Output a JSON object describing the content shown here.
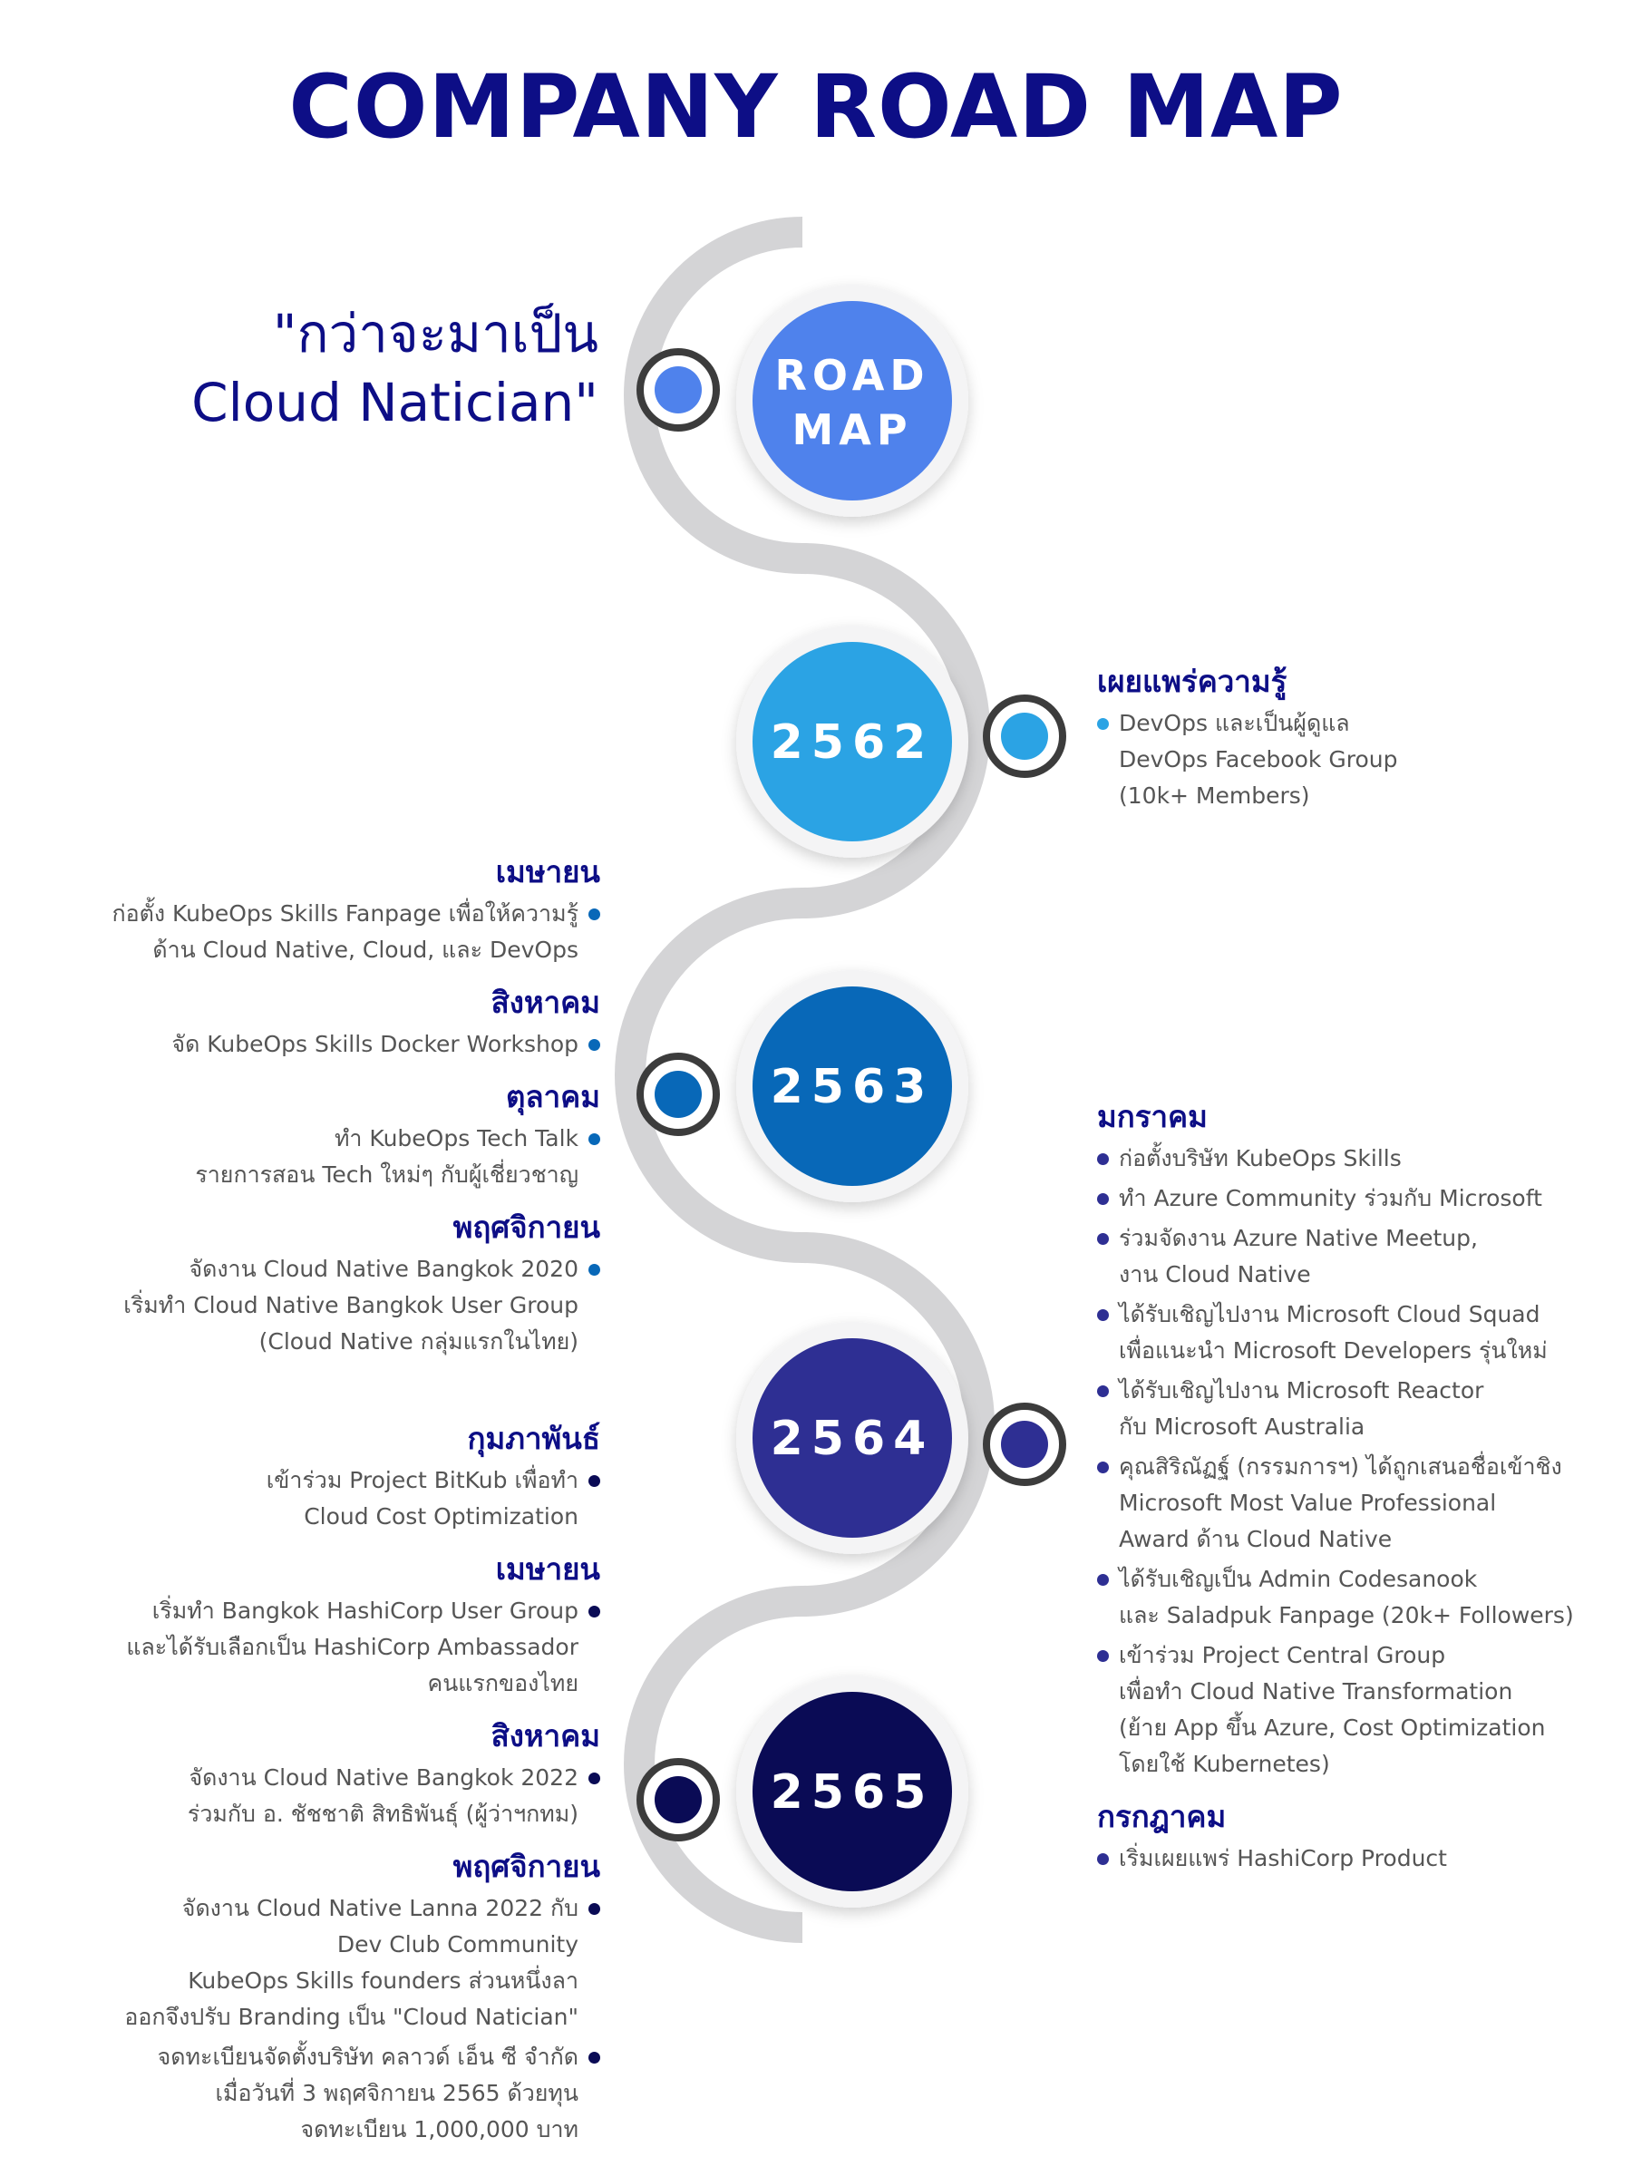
{
  "title": "COMPANY ROAD MAP",
  "tagline": {
    "line1": "\"กว่าจะมาเป็น",
    "line2": "Cloud Natician\""
  },
  "colors": {
    "title": "#0d0e86",
    "track": "#d4d4d6",
    "roadmap": "#4f82ec",
    "y2562": "#2ba3e4",
    "y2563": "#0868b8",
    "y2564": "#2e2f93",
    "y2565": "#0a0b55"
  },
  "milestones": [
    {
      "label_line1": "ROAD",
      "label_line2": "MAP"
    },
    {
      "label_line1": "2562",
      "label_line2": ""
    },
    {
      "label_line1": "2563",
      "label_line2": ""
    },
    {
      "label_line1": "2564",
      "label_line2": ""
    },
    {
      "label_line1": "2565",
      "label_line2": ""
    }
  ],
  "events": {
    "y2562_right": [
      {
        "month": "เผยแพร่ความรู้",
        "items": [
          {
            "lines": [
              "DevOps และเป็นผู้ดูแล",
              "DevOps Facebook Group",
              "(10k+ Members)"
            ]
          }
        ]
      }
    ],
    "y2563_left": [
      {
        "month": "เมษายน",
        "items": [
          {
            "lines": [
              "ก่อตั้ง KubeOps Skills Fanpage เพื่อให้ความรู้",
              "ด้าน Cloud Native, Cloud, และ DevOps"
            ]
          }
        ]
      },
      {
        "month": "สิงหาคม",
        "items": [
          {
            "lines": [
              "จัด KubeOps Skills Docker Workshop"
            ]
          }
        ]
      },
      {
        "month": "ตุลาคม",
        "items": [
          {
            "lines": [
              "ทำ KubeOps Tech Talk",
              "รายการสอน Tech ใหม่ๆ กับผู้เชี่ยวชาญ"
            ]
          }
        ]
      },
      {
        "month": "พฤศจิกายน",
        "items": [
          {
            "lines": [
              "จัดงาน Cloud Native Bangkok 2020",
              "เริ่มทำ Cloud Native Bangkok User Group",
              "(Cloud Native กลุ่มแรกในไทย)"
            ]
          }
        ]
      }
    ],
    "y2564_right": [
      {
        "month": "มกราคม",
        "items": [
          {
            "lines": [
              "ก่อตั้งบริษัท KubeOps Skills"
            ]
          },
          {
            "lines": [
              "ทำ Azure Community ร่วมกับ Microsoft"
            ]
          },
          {
            "lines": [
              "ร่วมจัดงาน Azure Native Meetup,",
              "งาน Cloud Native"
            ]
          },
          {
            "lines": [
              "ได้รับเชิญไปงาน Microsoft Cloud Squad",
              "เพื่อแนะนำ Microsoft Developers รุ่นใหม่"
            ]
          },
          {
            "lines": [
              "ได้รับเชิญไปงาน Microsoft Reactor",
              "กับ Microsoft Australia"
            ]
          },
          {
            "lines": [
              "คุณสิริณัฏฐ์ (กรรมการฯ) ได้ถูกเสนอชื่อเข้าชิง",
              "Microsoft Most Value Professional",
              "Award ด้าน Cloud Native"
            ]
          },
          {
            "lines": [
              "ได้รับเชิญเป็น Admin Codesanook",
              "และ Saladpuk Fanpage (20k+ Followers)"
            ]
          },
          {
            "lines": [
              "เข้าร่วม Project Central Group",
              "เพื่อทำ Cloud Native Transformation",
              "(ย้าย App ขึ้น Azure, Cost Optimization",
              "โดยใช้ Kubernetes)"
            ]
          }
        ]
      },
      {
        "month": "กรกฎาคม",
        "items": [
          {
            "lines": [
              "เริ่มเผยแพร่ HashiCorp Product"
            ]
          }
        ]
      }
    ],
    "y2565_left": [
      {
        "month": "กุมภาพันธ์",
        "items": [
          {
            "lines": [
              "เข้าร่วม Project BitKub เพื่อทำ",
              "Cloud Cost Optimization"
            ]
          }
        ]
      },
      {
        "month": "เมษายน",
        "items": [
          {
            "lines": [
              "เริ่มทำ Bangkok HashiCorp User Group",
              "และได้รับเลือกเป็น HashiCorp Ambassador",
              "คนแรกของไทย"
            ]
          }
        ]
      },
      {
        "month": "สิงหาคม",
        "items": [
          {
            "lines": [
              "จัดงาน Cloud Native Bangkok 2022",
              "ร่วมกับ อ. ชัชชาติ สิทธิพันธุ์ (ผู้ว่าฯกทม)"
            ]
          }
        ]
      },
      {
        "month": "พฤศจิกายน",
        "items": [
          {
            "lines": [
              "จัดงาน Cloud Native Lanna 2022 กับ",
              "Dev Club Community",
              "KubeOps Skills founders ส่วนหนึ่งลา",
              "ออกจึงปรับ Branding เป็น \"Cloud Natician\""
            ]
          },
          {
            "lines": [
              "จดทะเบียนจัดตั้งบริษัท คลาวด์ เอ็น ซี จำกัด",
              "เมื่อวันที่ 3 พฤศจิกายน 2565 ด้วยทุน",
              "จดทะเบียน 1,000,000 บาท"
            ]
          }
        ]
      }
    ]
  }
}
